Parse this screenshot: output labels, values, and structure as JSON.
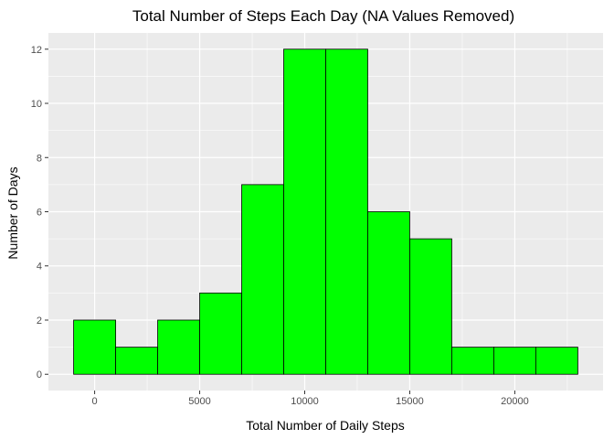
{
  "chart_data": {
    "type": "bar",
    "title": "Total Number of Steps Each Day (NA Values Removed)",
    "xlabel": "Total Number of Daily Steps",
    "ylabel": "Number of Days",
    "bins": [
      {
        "start": -1000,
        "end": 1000,
        "count": 2
      },
      {
        "start": 1000,
        "end": 3000,
        "count": 1
      },
      {
        "start": 3000,
        "end": 5000,
        "count": 2
      },
      {
        "start": 5000,
        "end": 7000,
        "count": 3
      },
      {
        "start": 7000,
        "end": 9000,
        "count": 7
      },
      {
        "start": 9000,
        "end": 11000,
        "count": 12
      },
      {
        "start": 11000,
        "end": 13000,
        "count": 12
      },
      {
        "start": 13000,
        "end": 15000,
        "count": 6
      },
      {
        "start": 15000,
        "end": 17000,
        "count": 5
      },
      {
        "start": 17000,
        "end": 19000,
        "count": 1
      },
      {
        "start": 19000,
        "end": 21000,
        "count": 1
      },
      {
        "start": 21000,
        "end": 23000,
        "count": 1
      }
    ],
    "xlim": [
      -2200,
      24200
    ],
    "ylim": [
      -0.6,
      12.6
    ],
    "xticks": [
      0,
      5000,
      10000,
      15000,
      20000
    ],
    "yticks": [
      0,
      2,
      4,
      6,
      8,
      10,
      12
    ],
    "colors": {
      "fill": "#00ff00",
      "outline": "#000000",
      "panel_background": "#ebebeb",
      "grid": "#ffffff"
    },
    "grid": true,
    "legend": "none"
  }
}
